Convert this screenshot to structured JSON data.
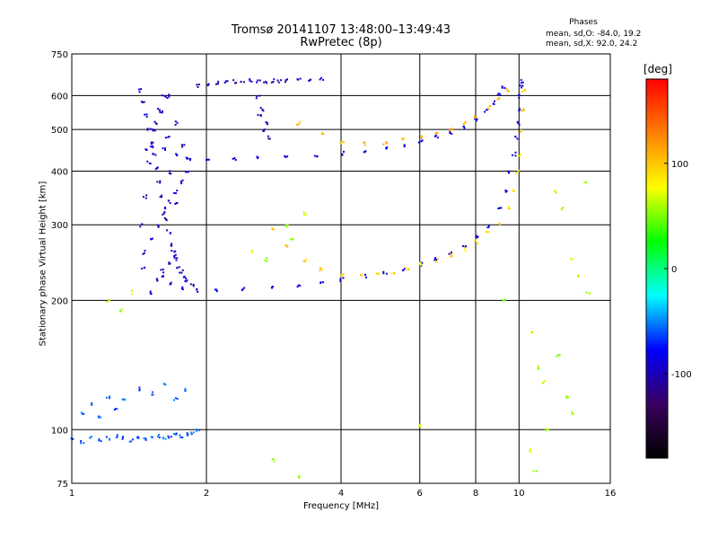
{
  "chart_data": {
    "type": "scatter",
    "title": "Tromsø 20141107 13:48:00–13:49:43",
    "subtitle": "RwPretec (8p)",
    "xlabel": "Frequency [MHz]",
    "ylabel": "Stationary phase Virtual Height [km]",
    "xscale": "log",
    "yscale": "log",
    "xlim": [
      1,
      16
    ],
    "ylim": [
      75,
      750
    ],
    "xticks": [
      1,
      2,
      4,
      6,
      8,
      10,
      16
    ],
    "xtick_labels": [
      "1",
      "2",
      "4",
      "6",
      "8",
      "10",
      "16"
    ],
    "yticks": [
      75,
      100,
      200,
      300,
      400,
      500,
      600,
      750
    ],
    "ytick_labels": [
      "75",
      "100",
      "200",
      "300",
      "400",
      "500",
      "600",
      "750"
    ],
    "grid": true,
    "phases": {
      "heading": "Phases",
      "line_o": "mean, sd,O: -84.0, 19.2",
      "line_x": "mean, sd,X: 92.0, 24.2"
    },
    "colorbar": {
      "unit": "[deg]",
      "range": [
        -180,
        180
      ],
      "ticks": [
        100,
        0,
        -100
      ],
      "tick_labels": [
        "100",
        "0",
        "-100"
      ],
      "colors": [
        "#000000",
        "#3a0060",
        "#0000ff",
        "#00ffff",
        "#00ff00",
        "#ffff00",
        "#ff8000",
        "#ff0000"
      ]
    },
    "series": [
      {
        "trace": "O-mode lower F-layer trace",
        "x": [
          1.6,
          1.65,
          1.75,
          1.9,
          2.1,
          2.4,
          2.8,
          3.2,
          3.6,
          4.0,
          4.5,
          5.0,
          5.5,
          6.0,
          6.5,
          7.0,
          7.5,
          8.0,
          8.5,
          9.0,
          9.3,
          9.5,
          9.7,
          9.85,
          9.95,
          10.0,
          10.02,
          10.05,
          10.08
        ],
        "y": [
          230,
          220,
          214,
          212,
          212,
          213,
          215,
          218,
          221,
          225,
          229,
          233,
          238,
          244,
          251,
          260,
          270,
          283,
          300,
          330,
          360,
          400,
          440,
          480,
          520,
          560,
          600,
          630,
          650
        ],
        "phase": -90
      },
      {
        "trace": "X-mode lower F-layer trace",
        "x": [
          2.8,
          3.0,
          3.3,
          3.6,
          4.0,
          4.4,
          4.8,
          5.2,
          5.6,
          6.0,
          6.5,
          7.0,
          7.5,
          8.0,
          8.5,
          9.0,
          9.4,
          9.7,
          9.9,
          10.0,
          10.1,
          10.15,
          10.2
        ],
        "y": [
          295,
          270,
          250,
          238,
          230,
          229,
          230,
          233,
          238,
          243,
          249,
          256,
          264,
          275,
          288,
          305,
          330,
          360,
          400,
          440,
          500,
          560,
          620
        ],
        "phase": 95
      },
      {
        "trace": "O-mode upper trace",
        "x": [
          1.6,
          1.7,
          1.8,
          2.0,
          2.3,
          2.6,
          3.0,
          3.5,
          4.0,
          4.5,
          5.0,
          5.5,
          6.0,
          6.5,
          7.0,
          7.5,
          8.0,
          8.4,
          8.7,
          9.0,
          9.2
        ],
        "y": [
          450,
          440,
          432,
          428,
          428,
          430,
          433,
          437,
          442,
          448,
          455,
          463,
          472,
          482,
          494,
          510,
          530,
          555,
          580,
          610,
          630
        ],
        "phase": -85
      },
      {
        "trace": "X-mode upper trace",
        "x": [
          3.2,
          3.6,
          4.0,
          4.5,
          5.0,
          5.5,
          6.0,
          6.5,
          7.0,
          7.5,
          8.0,
          8.5,
          9.0,
          9.4
        ],
        "y": [
          520,
          490,
          470,
          465,
          468,
          474,
          482,
          492,
          505,
          520,
          540,
          565,
          590,
          620
        ],
        "phase": 110
      },
      {
        "trace": "spread echoes near 1.4-1.9 MHz",
        "x": [
          1.42,
          1.44,
          1.46,
          1.48,
          1.5,
          1.52,
          1.54,
          1.56,
          1.58,
          1.6,
          1.62,
          1.64,
          1.66,
          1.68,
          1.7,
          1.72,
          1.75,
          1.78,
          1.8,
          1.85,
          1.42,
          1.45,
          1.48,
          1.5,
          1.53,
          1.56,
          1.6,
          1.63,
          1.66,
          1.7,
          1.45,
          1.5,
          1.55,
          1.6,
          1.65,
          1.7,
          1.75,
          1.8,
          1.46,
          1.52,
          1.58,
          1.64,
          1.7,
          1.76,
          1.82,
          1.44,
          1.49,
          1.54,
          1.59,
          1.64,
          1.69
        ],
        "y": [
          620,
          580,
          540,
          500,
          470,
          440,
          410,
          380,
          350,
          330,
          310,
          290,
          270,
          260,
          250,
          240,
          235,
          228,
          222,
          218,
          300,
          350,
          420,
          460,
          520,
          560,
          600,
          480,
          400,
          340,
          260,
          280,
          300,
          320,
          340,
          360,
          380,
          400,
          450,
          500,
          550,
          600,
          520,
          460,
          430,
          240,
          210,
          225,
          235,
          245,
          255
        ],
        "phase": -95
      },
      {
        "trace": "upper band near 2-3 MHz",
        "x": [
          1.9,
          2.0,
          2.1,
          2.2,
          2.3,
          2.4,
          2.5,
          2.6,
          2.7,
          2.8,
          2.9,
          3.0,
          3.2,
          3.4,
          3.6,
          2.6,
          2.65,
          2.7,
          2.75,
          2.62,
          2.68
        ],
        "y": [
          635,
          640,
          645,
          648,
          650,
          648,
          652,
          650,
          648,
          652,
          650,
          652,
          655,
          658,
          660,
          600,
          560,
          520,
          480,
          540,
          500
        ],
        "phase": -100
      },
      {
        "trace": "low-height echoes near 100 km",
        "x": [
          1.0,
          1.05,
          1.1,
          1.15,
          1.2,
          1.25,
          1.3,
          1.35,
          1.4,
          1.45,
          1.5,
          1.55,
          1.6,
          1.65,
          1.7,
          1.75,
          1.8,
          1.85,
          1.9,
          1.05,
          1.1,
          1.15,
          1.2,
          1.25,
          1.3,
          1.4,
          1.5,
          1.6,
          1.7,
          1.8
        ],
        "y": [
          95,
          94,
          96,
          95,
          96,
          97,
          96,
          95,
          96,
          95,
          96,
          97,
          96,
          97,
          98,
          97,
          98,
          99,
          100,
          110,
          115,
          108,
          120,
          112,
          118,
          125,
          122,
          128,
          118,
          124
        ],
        "phase": -60
      },
      {
        "trace": "scattered echoes",
        "x": [
          1.2,
          1.28,
          1.35,
          2.5,
          2.7,
          3.0,
          3.1,
          3.3,
          6.0,
          9.2,
          10.6,
          11.0,
          11.5,
          12.0,
          12.5,
          13.0,
          13.5,
          14.0,
          14.2,
          10.5,
          10.8,
          11.3,
          12.2,
          12.8,
          13.1,
          2.8,
          3.2,
          6.0
        ],
        "y": [
          200,
          190,
          210,
          260,
          250,
          300,
          280,
          320,
          103,
          200,
          170,
          140,
          100,
          360,
          330,
          250,
          230,
          380,
          210,
          90,
          80,
          130,
          150,
          120,
          110,
          85,
          78,
          245
        ],
        "phase": 60
      }
    ]
  }
}
